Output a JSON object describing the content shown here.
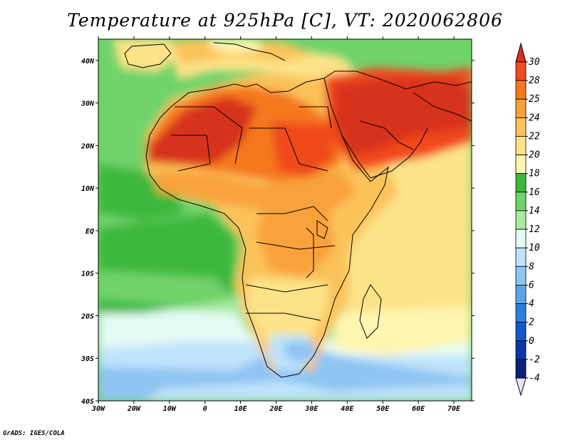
{
  "title": "Temperature at 925hPa [C], VT: 2020062806",
  "credit": "GrADS: IGES/COLA",
  "map": {
    "lat_ticks": [
      "40N",
      "30N",
      "20N",
      "10N",
      "EQ",
      "10S",
      "20S",
      "30S",
      "40S"
    ],
    "lon_ticks": [
      "30W",
      "20W",
      "10W",
      "0",
      "10E",
      "20E",
      "30E",
      "40E",
      "50E",
      "60E",
      "70E"
    ],
    "lon_range": [
      -30,
      75
    ],
    "lat_range": [
      -40,
      45
    ]
  },
  "colorbar": {
    "labels": [
      "30",
      "28",
      "25",
      "24",
      "22",
      "20",
      "18",
      "16",
      "14",
      "12",
      "10",
      "8",
      "6",
      "4",
      "2",
      "0",
      "-2",
      "-4"
    ],
    "colors": [
      "#d7301f",
      "#f04a1e",
      "#f5781e",
      "#f9a13a",
      "#fbc25a",
      "#fde388",
      "#fff5b0",
      "#3cb83c",
      "#6fd36a",
      "#a7eaa0",
      "#e4fbf4",
      "#bfe3fb",
      "#8ec5f2",
      "#5aa5ea",
      "#2e7fdc",
      "#1059c8",
      "#0a36a8",
      "#082378",
      "#e8e6ff"
    ],
    "top_color": "#d7301f",
    "bottom_color": "#e8e6ff"
  }
}
